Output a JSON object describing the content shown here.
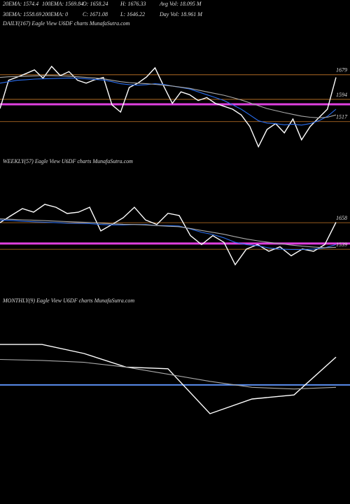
{
  "header": {
    "row1": [
      "20EMA: 1574.4",
      "100EMA: 1569.84",
      "O: 1658.24",
      "H: 1676.33",
      "Avg Vol: 18.095 M"
    ],
    "row2": [
      "30EMA: 1558.69",
      "200EMA: 0",
      "C: 1671.08",
      "L: 1646.22",
      "Day Vol: 18.961 M"
    ]
  },
  "chart_data": [
    {
      "type": "line",
      "title": "DAILY(167) Eagle   View  U6DF charts MunafaSutra.com",
      "ylim": [
        1417,
        1744
      ],
      "hlines": [
        {
          "value": 1679,
          "label": "1679",
          "color": "#c87a28"
        },
        {
          "value": 1594,
          "label": "1594",
          "color": "#c87a28"
        },
        {
          "value": 1577,
          "color": "#e040e0"
        },
        {
          "value": 1517,
          "label": "1517",
          "color": "#c87a28"
        }
      ],
      "series": [
        {
          "color": "#ffffff",
          "values": [
            1562,
            1660,
            1671,
            1683,
            1696,
            1667,
            1708,
            1676,
            1690,
            1660,
            1650,
            1662,
            1670,
            1575,
            1550,
            1635,
            1650,
            1671,
            1703,
            1640,
            1580,
            1620,
            1610,
            1590,
            1600,
            1580,
            1570,
            1560,
            1540,
            1500,
            1430,
            1490,
            1510,
            1478,
            1526,
            1454,
            1500,
            1530,
            1560,
            1670
          ]
        },
        {
          "color": "#2a6ef0",
          "values": [
            1650,
            1655,
            1660,
            1662,
            1664,
            1665,
            1666,
            1667,
            1668,
            1667,
            1665,
            1663,
            1661,
            1655,
            1648,
            1645,
            1643,
            1645,
            1648,
            1646,
            1640,
            1635,
            1630,
            1620,
            1610,
            1600,
            1590,
            1575,
            1560,
            1540,
            1520,
            1512,
            1510,
            1506,
            1508,
            1505,
            1510,
            1520,
            1535,
            1560
          ]
        },
        {
          "color": "#aaaaaa",
          "values": [
            1670,
            1672,
            1673,
            1674,
            1675,
            1676,
            1676,
            1675,
            1674,
            1672,
            1670,
            1668,
            1665,
            1660,
            1655,
            1652,
            1650,
            1648,
            1646,
            1643,
            1640,
            1636,
            1632,
            1626,
            1620,
            1614,
            1608,
            1600,
            1592,
            1582,
            1572,
            1562,
            1555,
            1548,
            1542,
            1536,
            1532,
            1530,
            1532,
            1540
          ]
        }
      ]
    },
    {
      "type": "line",
      "title": "WEEKLY(57) Eagle   View  U6DF charts MunafaSutra.com",
      "ylim": [
        1433,
        1746
      ],
      "hlines": [
        {
          "value": 1658,
          "label": "1658",
          "color": "#c87a28"
        },
        {
          "value": 1565,
          "color": "#e040e0"
        },
        {
          "value": 1539,
          "label": "1539",
          "color": "#c87a28"
        }
      ],
      "series": [
        {
          "color": "#ffffff",
          "values": [
            1658,
            1690,
            1721,
            1705,
            1740,
            1727,
            1699,
            1705,
            1727,
            1621,
            1650,
            1680,
            1727,
            1670,
            1650,
            1700,
            1690,
            1600,
            1560,
            1600,
            1570,
            1470,
            1540,
            1560,
            1530,
            1550,
            1510,
            1540,
            1530,
            1560,
            1660
          ]
        },
        {
          "color": "#2a6ef0",
          "values": [
            1670,
            1668,
            1665,
            1662,
            1660,
            1658,
            1656,
            1655,
            1654,
            1650,
            1648,
            1648,
            1650,
            1650,
            1645,
            1645,
            1643,
            1630,
            1615,
            1605,
            1590,
            1570,
            1560,
            1555,
            1545,
            1540,
            1538,
            1538,
            1540,
            1545,
            1560
          ]
        },
        {
          "color": "#aaaaaa",
          "values": [
            1675,
            1673,
            1671,
            1669,
            1667,
            1665,
            1663,
            1661,
            1659,
            1656,
            1653,
            1651,
            1650,
            1648,
            1645,
            1642,
            1640,
            1632,
            1623,
            1615,
            1606,
            1595,
            1585,
            1577,
            1570,
            1564,
            1558,
            1553,
            1549,
            1546,
            1548
          ]
        }
      ]
    },
    {
      "type": "line",
      "title": "MONTHLY(9) Eagle   View  U6DF charts MunafaSutra.com",
      "ylim": [
        1300,
        1800
      ],
      "hlines": [
        {
          "value": 1565,
          "color": "#5a8ef0"
        }
      ],
      "series": [
        {
          "color": "#ffffff",
          "values": [
            1735,
            1735,
            1697,
            1640,
            1633,
            1444,
            1506,
            1523,
            1682
          ]
        },
        {
          "color": "#aaaaaa",
          "values": [
            1672,
            1668,
            1660,
            1640,
            1610,
            1580,
            1555,
            1548,
            1555
          ]
        }
      ]
    }
  ]
}
